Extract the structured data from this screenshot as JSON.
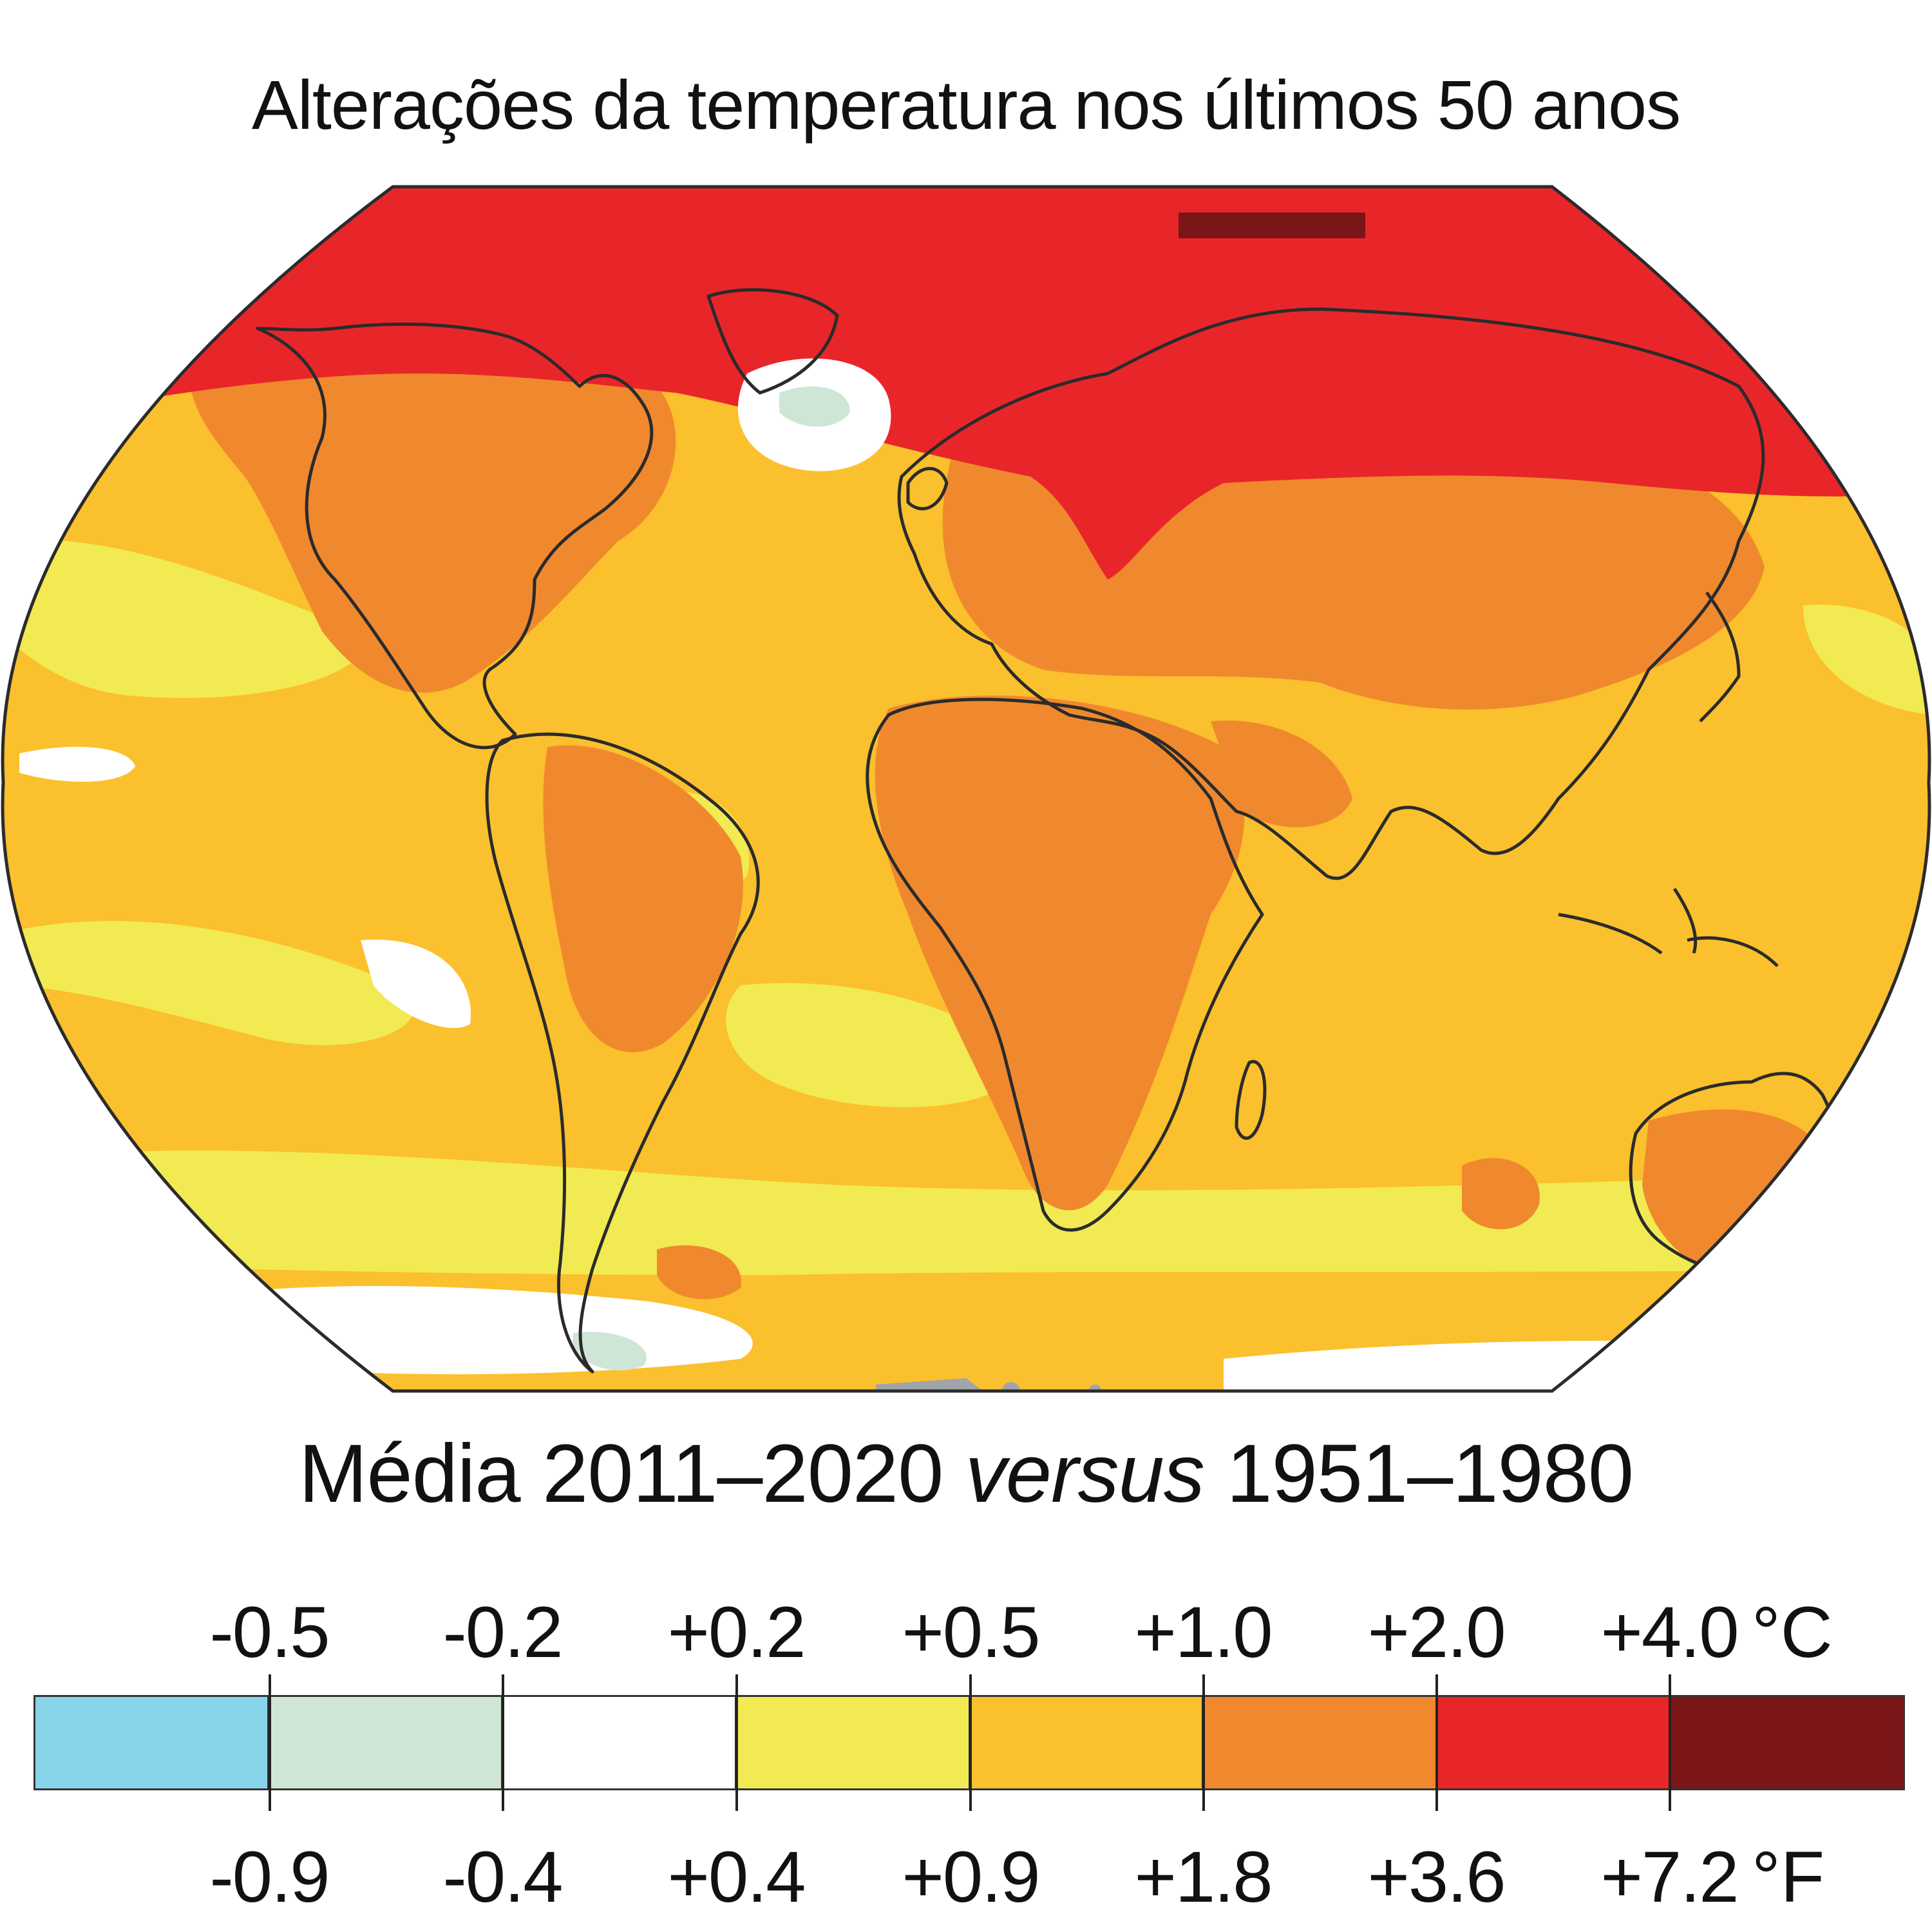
{
  "title": "Alterações da temperatura nos últimos 50 anos",
  "subtitle": {
    "prefix": "Média 2011–2020 ",
    "italic": "versus",
    "suffix": " 1951–1980"
  },
  "legend": {
    "celsius_ticks": [
      "-0.5",
      "-0.2",
      "+0.2",
      "+0.5",
      "+1.0",
      "+2.0",
      "+4.0"
    ],
    "celsius_unit": "°C",
    "fahrenheit_ticks": [
      "-0.9",
      "-0.4",
      "+0.4",
      "+0.9",
      "+1.8",
      "+3.6",
      "+7.2"
    ],
    "fahrenheit_unit": "°F",
    "colors": [
      "#88d4ea",
      "#cfe6d6",
      "#ffffff",
      "#f2ea52",
      "#fbc02d",
      "#f0892e",
      "#e8262a",
      "#7a1518"
    ]
  },
  "map": {
    "colors": {
      "gray": "#a0a4ab",
      "light_blue": "#88d4ea",
      "pale_green": "#cfe6d6",
      "white": "#ffffff",
      "yellow": "#f2ea52",
      "light_orange": "#fbc02d",
      "orange": "#f0892e",
      "red": "#e8262a",
      "dark_red": "#7a1518"
    }
  }
}
